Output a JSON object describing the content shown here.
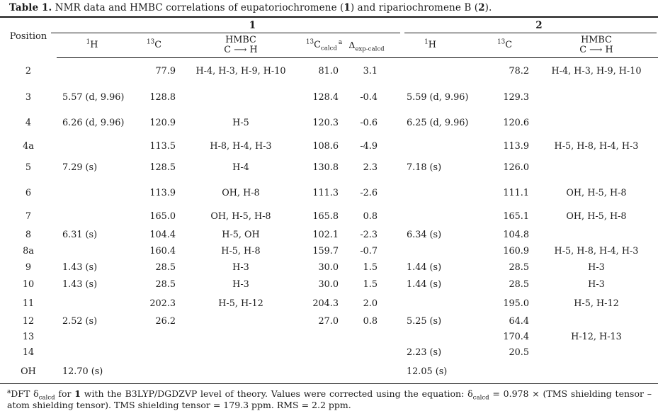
{
  "title": {
    "parts": [
      {
        "t": "b",
        "v": "Table 1."
      },
      {
        "t": "text",
        "v": " NMR data and HMBC correlations of eupatoriochromene ("
      },
      {
        "t": "b",
        "v": "1"
      },
      {
        "t": "text",
        "v": ") and ripariochromene B ("
      },
      {
        "t": "b",
        "v": "2"
      },
      {
        "t": "text",
        "v": ")."
      }
    ]
  },
  "table": {
    "position_header": "Position",
    "groups": [
      {
        "label": "1"
      },
      {
        "label": "2"
      }
    ],
    "columns": [
      {
        "sup": "1",
        "base": "H"
      },
      {
        "sup": "13",
        "base": "C"
      },
      {
        "line1": "HMBC",
        "line2": "C ⟶ H"
      },
      {
        "sup": "13",
        "base": "C",
        "sub": "calcd",
        "note": "a"
      },
      {
        "base": "Δ",
        "sub": "exp-calcd"
      },
      {
        "sup": "1",
        "base": "H"
      },
      {
        "sup": "13",
        "base": "C"
      },
      {
        "line1": "HMBC",
        "line2": "C ⟶ H"
      }
    ],
    "rows": [
      [
        "2",
        "",
        "77.9",
        "H-4, H-3, H-9, H-10",
        "81.0",
        "3.1",
        "",
        "78.2",
        "H-4, H-3, H-9, H-10"
      ],
      [
        "3",
        "5.57 (d, 9.96)",
        "128.8",
        "",
        "128.4",
        "-0.4",
        "5.59 (d, 9.96)",
        "129.3",
        ""
      ],
      [
        "4",
        "6.26 (d, 9.96)",
        "120.9",
        "H-5",
        "120.3",
        "-0.6",
        "6.25 (d, 9.96)",
        "120.6",
        ""
      ],
      [
        "4a",
        "",
        "113.5",
        "H-8, H-4, H-3",
        "108.6",
        "-4.9",
        "",
        "113.9",
        "H-5, H-8, H-4, H-3"
      ],
      [
        "5",
        "7.29 (s)",
        "128.5",
        "H-4",
        "130.8",
        "2.3",
        "7.18 (s)",
        "126.0",
        ""
      ],
      [
        "6",
        "",
        "113.9",
        "OH, H-8",
        "111.3",
        "-2.6",
        "",
        "111.1",
        "OH, H-5, H-8"
      ],
      [
        "7",
        "",
        "165.0",
        "OH, H-5, H-8",
        "165.8",
        "0.8",
        "",
        "165.1",
        "OH, H-5, H-8"
      ],
      [
        "8",
        "6.31 (s)",
        "104.4",
        "H-5, OH",
        "102.1",
        "-2.3",
        "6.34 (s)",
        "104.8",
        ""
      ],
      [
        "8a",
        "",
        "160.4",
        "H-5, H-8",
        "159.7",
        "-0.7",
        "",
        "160.9",
        "H-5, H-8, H-4, H-3"
      ],
      [
        "9",
        "1.43 (s)",
        "28.5",
        "H-3",
        "30.0",
        "1.5",
        "1.44 (s)",
        "28.5",
        "H-3"
      ],
      [
        "10",
        "1.43 (s)",
        "28.5",
        "H-3",
        "30.0",
        "1.5",
        "1.44 (s)",
        "28.5",
        "H-3"
      ],
      [
        "11",
        "",
        "202.3",
        "H-5, H-12",
        "204.3",
        "2.0",
        "",
        "195.0",
        "H-5, H-12"
      ],
      [
        "12",
        "2.52 (s)",
        "26.2",
        "",
        "27.0",
        "0.8",
        "5.25 (s)",
        "64.4",
        ""
      ],
      [
        "13",
        "",
        "",
        "",
        "",
        "",
        "",
        "170.4",
        "H-12, H-13"
      ],
      [
        "14",
        "",
        "",
        "",
        "",
        "",
        "2.23 (s)",
        "20.5",
        ""
      ],
      [
        "OH",
        "12.70 (s)",
        "",
        "",
        "",
        "",
        "12.05 (s)",
        "",
        ""
      ]
    ]
  },
  "footnote": {
    "parts": [
      {
        "t": "sup",
        "v": "a"
      },
      {
        "t": "text",
        "v": "DFT δ"
      },
      {
        "t": "sub",
        "v": "calcd"
      },
      {
        "t": "text",
        "v": " for "
      },
      {
        "t": "b",
        "v": "1"
      },
      {
        "t": "text",
        "v": " with the B3LYP/DGDZVP level of theory. Values were corrected using the equation: δ"
      },
      {
        "t": "sub",
        "v": "calcd"
      },
      {
        "t": "text",
        "v": " = 0.978 × (TMS shielding tensor – atom shielding tensor). TMS shielding tensor = 179.3 ppm. RMS = 2.2 ppm."
      }
    ]
  }
}
